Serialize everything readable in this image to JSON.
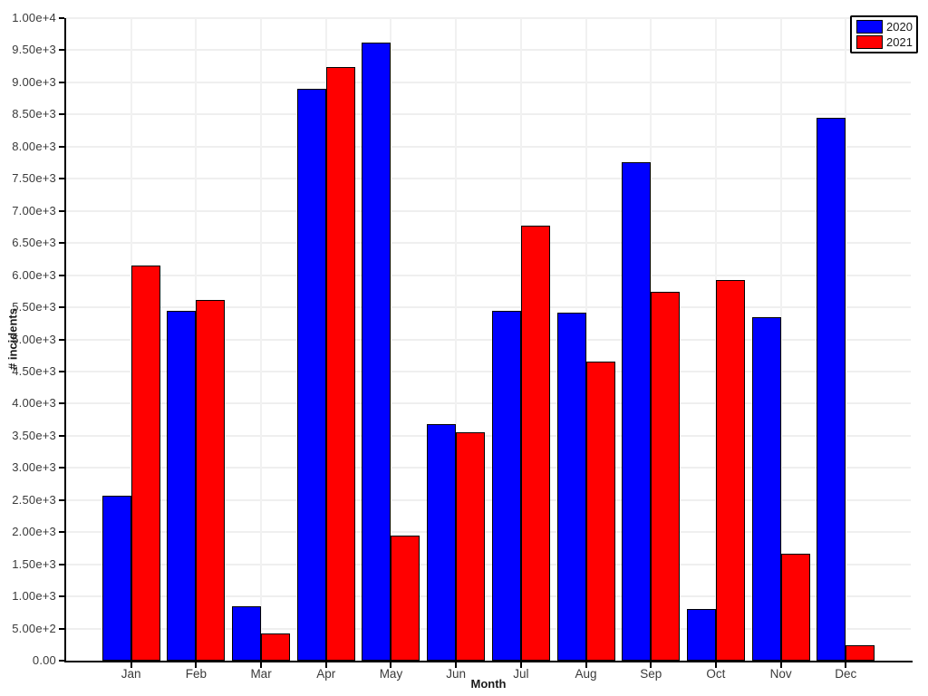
{
  "chart_data": {
    "type": "bar",
    "title": "",
    "xlabel": "Month",
    "ylabel": "# incidents",
    "categories": [
      "Jan",
      "Feb",
      "Mar",
      "Apr",
      "May",
      "Jun",
      "Jul",
      "Aug",
      "Sep",
      "Oct",
      "Nov",
      "Dec"
    ],
    "series": [
      {
        "name": "2020",
        "color": "#0000ff",
        "values": [
          2570,
          5440,
          840,
          8900,
          9620,
          3680,
          5450,
          5410,
          7760,
          800,
          5340,
          8450
        ]
      },
      {
        "name": "2021",
        "color": "#ff0000",
        "values": [
          6150,
          5610,
          420,
          9240,
          1940,
          3560,
          6770,
          4650,
          5740,
          5930,
          1670,
          240
        ]
      }
    ],
    "ylim": [
      0,
      10000
    ],
    "ytick_step": 500,
    "ytick_labels": [
      "0.00",
      "5.00e+2",
      "1.00e+3",
      "1.50e+3",
      "2.00e+3",
      "2.50e+3",
      "3.00e+3",
      "3.50e+3",
      "4.00e+3",
      "4.50e+3",
      "5.00e+3",
      "5.50e+3",
      "6.00e+3",
      "6.50e+3",
      "7.00e+3",
      "7.50e+3",
      "8.00e+3",
      "8.50e+3",
      "9.00e+3",
      "9.50e+3",
      "1.00e+4"
    ],
    "grid": true,
    "legend_position": "top-right",
    "legend_items": [
      {
        "label": "2020",
        "color": "#0000ff"
      },
      {
        "label": "2021",
        "color": "#ff0000"
      }
    ]
  }
}
